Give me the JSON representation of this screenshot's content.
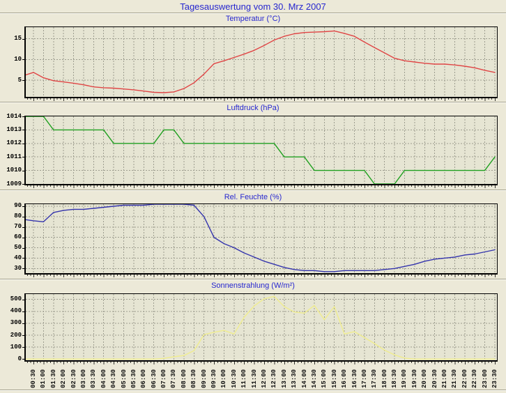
{
  "page": {
    "title": "Tagesauswertung vom 30. Mrz 2007",
    "bg_color": "#ece9d8",
    "plot_bg_color": "#e6e5d3",
    "title_color": "#2626cf",
    "grid_color": "#9c9c8e",
    "frame_color": "#000000"
  },
  "time_axis": {
    "sample_interval_minutes": 30,
    "sample_times": [
      "00:00",
      "00:30",
      "01:00",
      "01:30",
      "02:00",
      "02:30",
      "03:00",
      "03:30",
      "04:00",
      "04:30",
      "05:00",
      "05:30",
      "06:00",
      "06:30",
      "07:00",
      "07:30",
      "08:00",
      "08:30",
      "09:00",
      "09:30",
      "10:00",
      "10:30",
      "11:00",
      "11:30",
      "12:00",
      "12:30",
      "13:00",
      "13:30",
      "14:00",
      "14:30",
      "15:00",
      "15:30",
      "16:00",
      "16:30",
      "17:00",
      "17:30",
      "18:00",
      "18:30",
      "19:00",
      "19:30",
      "20:00",
      "20:30",
      "21:00",
      "21:30",
      "22:00",
      "22:30",
      "23:00",
      "23:30"
    ],
    "tick_labels": [
      "00:30",
      "01:00",
      "01:30",
      "02:00",
      "02:30",
      "03:00",
      "03:30",
      "04:00",
      "04:30",
      "05:00",
      "05:30",
      "06:00",
      "06:30",
      "07:00",
      "07:30",
      "08:00",
      "08:30",
      "09:00",
      "09:30",
      "10:00",
      "10:30",
      "11:00",
      "11:30",
      "12:00",
      "12:30",
      "13:00",
      "13:30",
      "14:00",
      "14:30",
      "15:00",
      "15:30",
      "16:00",
      "16:30",
      "17:00",
      "17:30",
      "18:00",
      "18:30",
      "19:00",
      "19:30",
      "20:00",
      "20:30",
      "21:00",
      "21:30",
      "22:00",
      "22:30",
      "23:00",
      "23:30"
    ]
  },
  "chart_data": [
    {
      "type": "line",
      "title": "Temperatur (°C)",
      "unit": "°C",
      "line_color": "#e04545",
      "y_ticks": [
        5,
        10,
        15
      ],
      "y_tick_labels": [
        "5",
        "10",
        "15"
      ],
      "y_range": [
        1.0,
        17.8
      ],
      "grid": true,
      "values": [
        6.3,
        6.9,
        5.6,
        4.9,
        4.6,
        4.3,
        3.9,
        3.4,
        3.2,
        3.1,
        2.9,
        2.7,
        2.4,
        2.1,
        2.0,
        2.2,
        3.0,
        4.4,
        6.5,
        9.0,
        9.7,
        10.5,
        11.3,
        12.2,
        13.4,
        14.7,
        15.6,
        16.2,
        16.5,
        16.6,
        16.7,
        16.9,
        16.3,
        15.6,
        14.2,
        12.9,
        11.6,
        10.3,
        9.7,
        9.4,
        9.1,
        8.9,
        8.9,
        8.7,
        8.4,
        8.0,
        7.4,
        6.9
      ]
    },
    {
      "type": "line",
      "title": "Luftdruck (hPa)",
      "unit": "hPa",
      "line_color": "#20a020",
      "y_ticks": [
        1009,
        1010,
        1011,
        1012,
        1013,
        1014
      ],
      "y_tick_labels": [
        "1009",
        "1010",
        "1011",
        "1012",
        "1013",
        "1014"
      ],
      "y_range": [
        1009,
        1014
      ],
      "grid": true,
      "values": [
        1014,
        1014,
        1014,
        1013,
        1013,
        1013,
        1013,
        1013,
        1013,
        1012,
        1012,
        1012,
        1012,
        1012,
        1013,
        1013,
        1012,
        1012,
        1012,
        1012,
        1012,
        1012,
        1012,
        1012,
        1012,
        1012,
        1011,
        1011,
        1011,
        1010,
        1010,
        1010,
        1010,
        1010,
        1010,
        1009,
        1009,
        1009,
        1010,
        1010,
        1010,
        1010,
        1010,
        1010,
        1010,
        1010,
        1010,
        1011
      ]
    },
    {
      "type": "line",
      "title": "Rel. Feuchte (%)",
      "unit": "%",
      "line_color": "#3434ad",
      "y_ticks": [
        30,
        40,
        50,
        60,
        70,
        80,
        90
      ],
      "y_tick_labels": [
        "30",
        "40",
        "50",
        "60",
        "70",
        "80",
        "90"
      ],
      "y_range": [
        25.5,
        92
      ],
      "grid": true,
      "values": [
        77,
        76,
        75,
        84,
        86,
        87,
        87,
        88,
        89,
        90,
        91,
        91,
        91,
        92,
        92,
        92,
        92,
        91,
        80,
        60,
        54,
        50,
        45,
        41,
        37,
        34,
        31,
        29,
        28,
        28,
        27,
        27,
        28,
        28,
        28,
        28,
        29,
        30,
        32,
        34,
        37,
        39,
        40,
        41,
        43,
        44,
        46,
        48
      ]
    },
    {
      "type": "line",
      "title": "Sonnenstrahlung (W/m²)",
      "unit": "W/m²",
      "line_color": "#f0ed8e",
      "y_ticks": [
        0,
        100,
        200,
        300,
        400,
        500
      ],
      "y_tick_labels": [
        "0",
        "100",
        "200",
        "300",
        "400",
        "500"
      ],
      "y_range": [
        -10,
        545
      ],
      "grid": true,
      "values": [
        0,
        0,
        0,
        0,
        0,
        0,
        0,
        0,
        0,
        0,
        0,
        0,
        0,
        0,
        6,
        20,
        30,
        70,
        205,
        225,
        240,
        210,
        350,
        445,
        505,
        525,
        440,
        395,
        385,
        450,
        330,
        440,
        210,
        230,
        180,
        130,
        75,
        35,
        8,
        0,
        0,
        0,
        0,
        0,
        0,
        0,
        0,
        0
      ]
    }
  ]
}
